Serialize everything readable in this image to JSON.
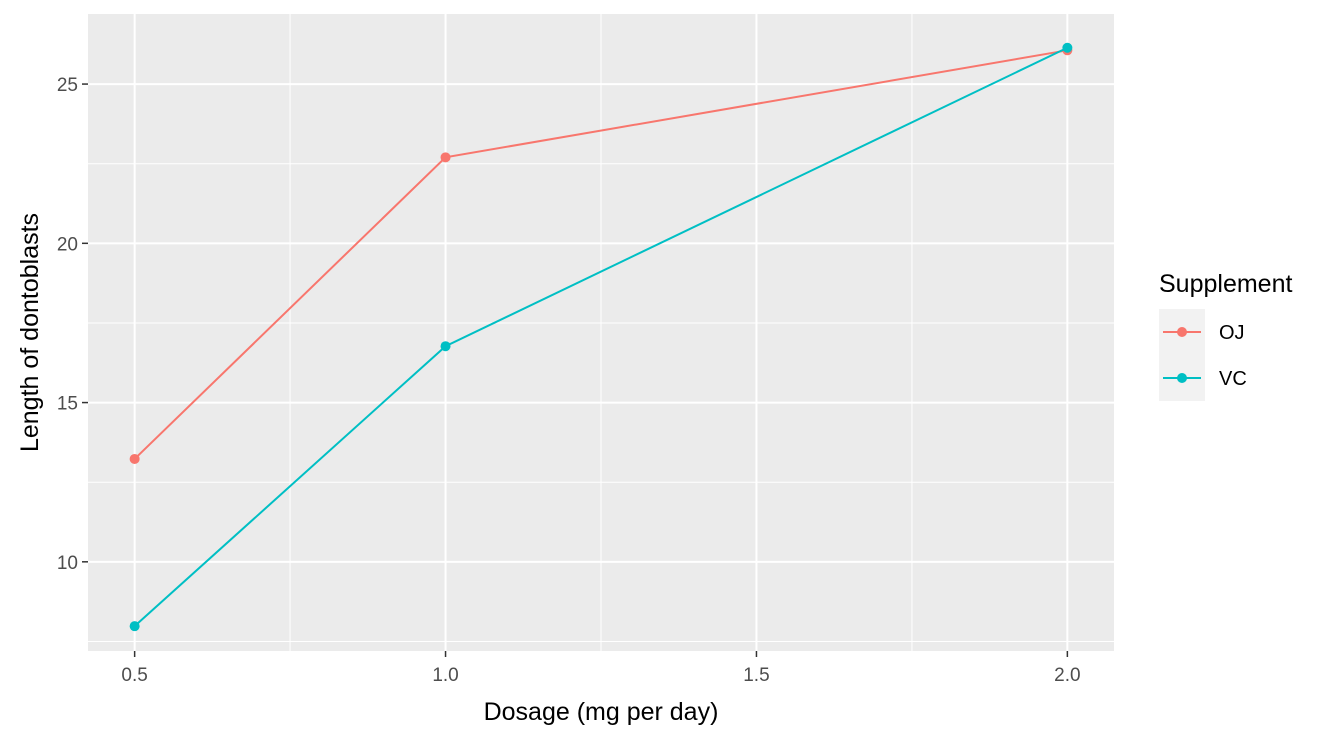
{
  "chart_data": {
    "type": "line",
    "title": "",
    "xlabel": "Dosage (mg per day)",
    "ylabel": "Length of dontoblasts",
    "xlim": [
      0.425,
      2.075
    ],
    "ylim": [
      7.2,
      27.2
    ],
    "x_ticks": [
      0.5,
      1.0,
      1.5,
      2.0
    ],
    "x_tick_labels": [
      "0.5",
      "1.0",
      "1.5",
      "2.0"
    ],
    "y_ticks": [
      10,
      15,
      20,
      25
    ],
    "y_tick_labels": [
      "10",
      "15",
      "20",
      "25"
    ],
    "grid": true,
    "legend": {
      "title": "Supplement",
      "position": "right"
    },
    "series": [
      {
        "name": "OJ",
        "color": "#F8766D",
        "x": [
          0.5,
          1.0,
          2.0
        ],
        "y": [
          13.23,
          22.7,
          26.06
        ]
      },
      {
        "name": "VC",
        "color": "#00BFC4",
        "x": [
          0.5,
          1.0,
          2.0
        ],
        "y": [
          7.98,
          16.77,
          26.14
        ]
      }
    ]
  }
}
